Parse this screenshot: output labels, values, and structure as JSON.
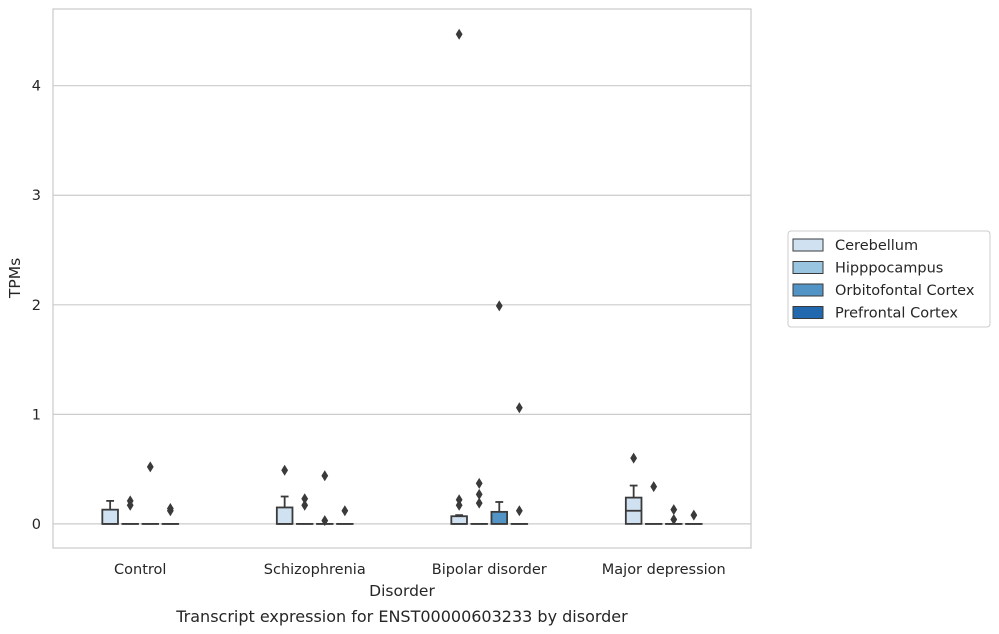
{
  "chart_data": {
    "type": "box",
    "caption": "Transcript expression for ENST00000603233 by disorder",
    "xlabel": "Disorder",
    "ylabel": "TPMs",
    "ylim": [
      -0.22,
      4.7
    ],
    "yticks": [
      0,
      1,
      2,
      3,
      4
    ],
    "grid": "horizontal",
    "legend_position": "right",
    "categories": [
      "Control",
      "Schizophrenia",
      "Bipolar disorder",
      "Major depression"
    ],
    "series": [
      {
        "name": "Cerebellum",
        "color": "#d0e1f2",
        "boxes": [
          {
            "q1": 0.0,
            "median": 0.0,
            "q3": 0.13,
            "whisker_low": 0.0,
            "whisker_high": 0.21,
            "outliers": []
          },
          {
            "q1": 0.0,
            "median": 0.0,
            "q3": 0.15,
            "whisker_low": 0.0,
            "whisker_high": 0.25,
            "outliers": [
              0.49
            ]
          },
          {
            "q1": 0.0,
            "median": 0.0,
            "q3": 0.07,
            "whisker_low": 0.0,
            "whisker_high": 0.08,
            "outliers": [
              0.17,
              0.22,
              4.47
            ]
          },
          {
            "q1": 0.0,
            "median": 0.12,
            "q3": 0.24,
            "whisker_low": 0.0,
            "whisker_high": 0.35,
            "outliers": [
              0.6
            ]
          }
        ]
      },
      {
        "name": "Hipppocampus",
        "color": "#9ac5e0",
        "boxes": [
          {
            "q1": 0.0,
            "median": 0.0,
            "q3": 0.0,
            "whisker_low": 0.0,
            "whisker_high": 0.0,
            "outliers": [
              0.17,
              0.21
            ]
          },
          {
            "q1": 0.0,
            "median": 0.0,
            "q3": 0.0,
            "whisker_low": 0.0,
            "whisker_high": 0.0,
            "outliers": [
              0.17,
              0.23
            ]
          },
          {
            "q1": 0.0,
            "median": 0.0,
            "q3": 0.0,
            "whisker_low": 0.0,
            "whisker_high": 0.0,
            "outliers": [
              0.19,
              0.27,
              0.37
            ]
          },
          {
            "q1": 0.0,
            "median": 0.0,
            "q3": 0.0,
            "whisker_low": 0.0,
            "whisker_high": 0.0,
            "outliers": [
              0.34
            ]
          }
        ]
      },
      {
        "name": "Orbitofontal Cortex",
        "color": "#5294c5",
        "boxes": [
          {
            "q1": 0.0,
            "median": 0.0,
            "q3": 0.0,
            "whisker_low": 0.0,
            "whisker_high": 0.0,
            "outliers": [
              0.52
            ]
          },
          {
            "q1": 0.0,
            "median": 0.0,
            "q3": 0.0,
            "whisker_low": 0.0,
            "whisker_high": 0.0,
            "outliers": [
              0.03,
              0.44
            ]
          },
          {
            "q1": 0.0,
            "median": 0.0,
            "q3": 0.11,
            "whisker_low": 0.0,
            "whisker_high": 0.2,
            "outliers": [
              1.99
            ]
          },
          {
            "q1": 0.0,
            "median": 0.0,
            "q3": 0.0,
            "whisker_low": 0.0,
            "whisker_high": 0.0,
            "outliers": [
              0.04,
              0.13
            ]
          }
        ]
      },
      {
        "name": "Prefrontal Cortex",
        "color": "#2268ae",
        "boxes": [
          {
            "q1": 0.0,
            "median": 0.0,
            "q3": 0.0,
            "whisker_low": 0.0,
            "whisker_high": 0.0,
            "outliers": [
              0.12,
              0.14
            ]
          },
          {
            "q1": 0.0,
            "median": 0.0,
            "q3": 0.0,
            "whisker_low": 0.0,
            "whisker_high": 0.0,
            "outliers": [
              0.12
            ]
          },
          {
            "q1": 0.0,
            "median": 0.0,
            "q3": 0.0,
            "whisker_low": 0.0,
            "whisker_high": 0.0,
            "outliers": [
              0.12,
              1.06
            ]
          },
          {
            "q1": 0.0,
            "median": 0.0,
            "q3": 0.0,
            "whisker_low": 0.0,
            "whisker_high": 0.0,
            "outliers": [
              0.08
            ]
          }
        ]
      }
    ]
  }
}
